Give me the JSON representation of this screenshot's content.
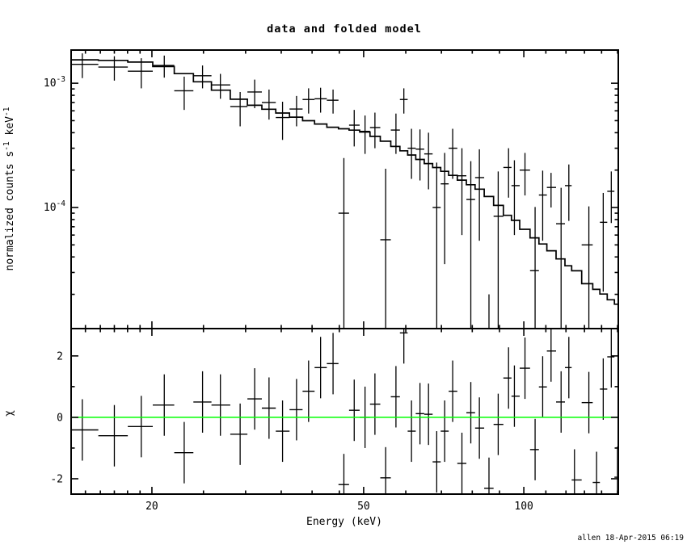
{
  "page": {
    "background": "#ffffff"
  },
  "header": {
    "title": "data and folded model"
  },
  "footer": {
    "credit": "allen 18-Apr-2015 06:19"
  },
  "colors": {
    "frame": "#000000",
    "data": "#000000",
    "model": "#000000",
    "zero_line": "#00ff00",
    "background": "#ffffff"
  },
  "chart_data": {
    "type": "line+scatter",
    "layout": "two-stacked-panels-shared-x-axis",
    "title": "data and folded model",
    "x_axis": {
      "label": "Energy (keV)",
      "scale": "log",
      "xlim": [
        14.1,
        150.5
      ],
      "major_ticks": [
        {
          "value": 20,
          "label": "20"
        },
        {
          "value": 50,
          "label": "50"
        },
        {
          "value": 100,
          "label": "100"
        }
      ],
      "minor_ticks": [
        15,
        16,
        17,
        18,
        19,
        25,
        30,
        35,
        40,
        45,
        60,
        70,
        80,
        90,
        110,
        120,
        130,
        140,
        150
      ]
    },
    "top_panel": {
      "ylabel": "normalized counts s⁻¹ keV⁻¹",
      "ylabel_parts": [
        [
          "normalized counts s",
          0
        ],
        [
          "-1",
          1
        ],
        [
          " keV",
          0
        ],
        [
          "-1",
          1
        ]
      ],
      "yscale": "log",
      "ylim": [
        1.06e-05,
        0.00185
      ],
      "y_major_ticks": [
        {
          "value": 0.001,
          "base": "10",
          "exp": "-3"
        },
        {
          "value": 0.0001,
          "base": "10",
          "exp": "-4"
        }
      ],
      "y_minor_ticks": [
        2e-05,
        3e-05,
        4e-05,
        5e-05,
        6e-05,
        7e-05,
        8e-05,
        9e-05,
        0.0002,
        0.0003,
        0.0004,
        0.0005,
        0.0006,
        0.0007,
        0.0008,
        0.0009
      ],
      "data": {
        "energy_keV": [
          14.8,
          17.0,
          19.1,
          21.1,
          23.0,
          24.9,
          26.9,
          29.3,
          31.2,
          33.2,
          35.2,
          37.4,
          39.4,
          41.5,
          43.8,
          45.9,
          48.0,
          50.3,
          52.5,
          55.0,
          57.5,
          59.5,
          61.5,
          63.8,
          66.2,
          68.6,
          71.0,
          73.5,
          76.5,
          79.5,
          82.5,
          86.0,
          89.5,
          93.6,
          96.0,
          100.5,
          105.0,
          108.5,
          112.5,
          117.5,
          121.5,
          124.5,
          132.5,
          137.0,
          141.0,
          146.0,
          150.0
        ],
        "value": [
          0.00142,
          0.00135,
          0.00125,
          0.00139,
          0.00087,
          0.00115,
          0.00097,
          0.00065,
          0.00085,
          0.0007,
          0.00053,
          0.00062,
          0.00074,
          0.00075,
          0.00073,
          9e-05,
          0.00046,
          0.00041,
          0.00044,
          5.5e-05,
          0.00042,
          0.00074,
          0.0003,
          0.000295,
          0.00027,
          0.0001,
          0.000155,
          0.0003,
          0.00018,
          0.000116,
          0.000174,
          -6e-05,
          8.5e-05,
          0.00021,
          0.00015,
          0.0002,
          3.1e-05,
          0.000126,
          0.000145,
          7.4e-05,
          0.00015,
          -7e-05,
          5e-05,
          -8.5e-05,
          7.6e-05,
          0.000135,
          -9.5e-05
        ],
        "sigma": [
          0.00032,
          0.0003,
          0.00034,
          0.00028,
          0.00026,
          0.00024,
          0.00022,
          0.0002,
          0.00022,
          0.00019,
          0.00018,
          0.00017,
          0.00017,
          0.00017,
          0.00016,
          0.00016,
          0.00015,
          0.00014,
          0.00014,
          0.00015,
          0.00015,
          0.00017,
          0.00013,
          0.00013,
          0.00013,
          0.00013,
          0.00012,
          0.00013,
          0.00012,
          0.00012,
          0.00012,
          8e-05,
          0.00011,
          9e-05,
          9e-05,
          7.5e-05,
          7e-05,
          7.2e-05,
          4.5e-05,
          7e-05,
          7.2e-05,
          5e-05,
          5.2e-05,
          5e-05,
          5.5e-05,
          6e-05,
          5.5e-05
        ]
      },
      "model": {
        "energy_keV": [
          14.1,
          18,
          20,
          22,
          25,
          28,
          31,
          35,
          40,
          44,
          50,
          56,
          63,
          72,
          84,
          94,
          105,
          118,
          133,
          150.5
        ],
        "value": [
          0.00155,
          0.00152,
          0.00145,
          0.0013,
          0.00102,
          0.00081,
          0.00067,
          0.00058,
          0.00049,
          0.00044,
          0.00041,
          0.00033,
          0.00025,
          0.00019,
          0.000135,
          8.5e-05,
          5.7e-05,
          3.8e-05,
          2.4e-05,
          1.65e-05
        ]
      }
    },
    "bottom_panel": {
      "ylabel": "χ",
      "yscale": "linear",
      "ylim": [
        -2.5,
        2.89
      ],
      "y_major_ticks": [
        {
          "value": -2,
          "label": "-2"
        },
        {
          "value": 0,
          "label": "0"
        },
        {
          "value": 2,
          "label": "2"
        }
      ],
      "y_minor_ticks": [
        -1,
        1
      ],
      "zero_line": 0,
      "chi": [
        -0.41,
        -0.6,
        -0.3,
        0.4,
        -1.15,
        0.5,
        0.4,
        -0.55,
        0.6,
        0.3,
        -0.45,
        0.25,
        0.85,
        1.62,
        1.75,
        -2.19,
        0.23,
        0.0,
        0.43,
        -1.97,
        0.67,
        2.75,
        -0.45,
        0.12,
        0.1,
        -1.45,
        -0.45,
        0.85,
        -1.5,
        0.15,
        -0.35,
        -2.31,
        -0.23,
        1.28,
        0.69,
        1.6,
        -1.05,
        0.99,
        2.16,
        0.5,
        1.62,
        -2.04,
        0.48,
        -2.12,
        0.92,
        1.97,
        -1.95
      ],
      "chi_err": 1
    }
  }
}
